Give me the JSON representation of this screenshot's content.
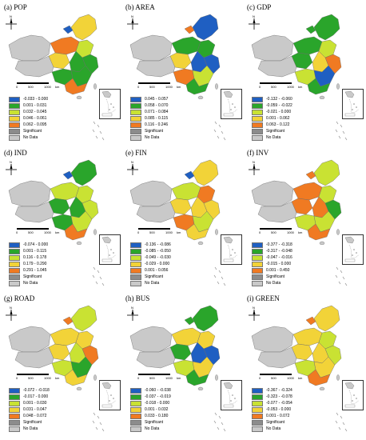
{
  "colors": {
    "blue": "#1f5fc2",
    "green": "#2aa52b",
    "yellowgreen": "#c9e233",
    "yellow": "#f2d338",
    "orange": "#f07a22",
    "gray": "#c9c9c9",
    "significant": "#8c8c8c"
  },
  "panels": [
    {
      "title": "(a) POP",
      "legend": [
        {
          "label": "-0.033 - 0.000",
          "color": "blue"
        },
        {
          "label": "0.001 - 0.031",
          "color": "green"
        },
        {
          "label": "0.032 - 0.045",
          "color": "yellowgreen"
        },
        {
          "label": "0.046 - 0.061",
          "color": "yellow"
        },
        {
          "label": "0.062 - 0.095",
          "color": "orange"
        },
        {
          "label": "Significant",
          "color": "significant"
        },
        {
          "label": "No Data",
          "color": "gray"
        }
      ],
      "regions": [
        "gray",
        "gray",
        "orange",
        "yellow",
        "yellowgreen",
        "yellow",
        "green",
        "green",
        "green",
        "green",
        "orange",
        "blue"
      ]
    },
    {
      "title": "(b) AREA",
      "legend": [
        {
          "label": "0.045 - 0.057",
          "color": "blue"
        },
        {
          "label": "0.058 - 0.070",
          "color": "green"
        },
        {
          "label": "0.071 - 0.084",
          "color": "yellowgreen"
        },
        {
          "label": "0.085 - 0.115",
          "color": "yellow"
        },
        {
          "label": "0.116 - 0.246",
          "color": "orange"
        },
        {
          "label": "Significant",
          "color": "significant"
        },
        {
          "label": "No Data",
          "color": "gray"
        }
      ],
      "regions": [
        "gray",
        "gray",
        "green",
        "blue",
        "green",
        "yellow",
        "blue",
        "blue",
        "orange",
        "yellowgreen",
        "green",
        "orange"
      ]
    },
    {
      "title": "(c) GDP",
      "legend": [
        {
          "label": "-0.132 - -0.060",
          "color": "blue"
        },
        {
          "label": "-0.059 - -0.022",
          "color": "green"
        },
        {
          "label": "-0.021 - 0.000",
          "color": "yellowgreen"
        },
        {
          "label": "0.001 - 0.062",
          "color": "yellow"
        },
        {
          "label": "0.063 - 0.122",
          "color": "orange"
        },
        {
          "label": "Significant",
          "color": "significant"
        },
        {
          "label": "No Data",
          "color": "gray"
        }
      ],
      "regions": [
        "gray",
        "gray",
        "green",
        "green",
        "yellowgreen",
        "green",
        "yellow",
        "orange",
        "yellowgreen",
        "blue",
        "green",
        "green"
      ]
    },
    {
      "title": "(d) IND",
      "legend": [
        {
          "label": "-0.074 - 0.000",
          "color": "blue"
        },
        {
          "label": "0.001 - 0.115",
          "color": "green"
        },
        {
          "label": "0.116 - 0.178",
          "color": "yellowgreen"
        },
        {
          "label": "0.179 - 0.290",
          "color": "yellow"
        },
        {
          "label": "0.291 - 1.045",
          "color": "orange"
        },
        {
          "label": "Significant",
          "color": "significant"
        },
        {
          "label": "No Data",
          "color": "gray"
        }
      ],
      "regions": [
        "gray",
        "gray",
        "yellowgreen",
        "green",
        "yellowgreen",
        "green",
        "green",
        "yellowgreen",
        "green",
        "yellowgreen",
        "orange",
        "blue"
      ]
    },
    {
      "title": "(e) FIN",
      "legend": [
        {
          "label": "-0.136 - -0.086",
          "color": "blue"
        },
        {
          "label": "-0.085 - -0.050",
          "color": "green"
        },
        {
          "label": "-0.049 - -0.030",
          "color": "yellowgreen"
        },
        {
          "label": "-0.029 - 0.000",
          "color": "yellow"
        },
        {
          "label": "0.001 - 0.056",
          "color": "orange"
        },
        {
          "label": "Significant",
          "color": "significant"
        },
        {
          "label": "No Data",
          "color": "gray"
        }
      ],
      "regions": [
        "gray",
        "gray",
        "yellowgreen",
        "yellow",
        "orange",
        "yellow",
        "yellow",
        "yellow",
        "orange",
        "yellowgreen",
        "yellow",
        "blue"
      ]
    },
    {
      "title": "(f) INV",
      "legend": [
        {
          "label": "-0.377 - -0.318",
          "color": "blue"
        },
        {
          "label": "-0.317 - -0.048",
          "color": "green"
        },
        {
          "label": "-0.047 - -0.016",
          "color": "yellowgreen"
        },
        {
          "label": "-0.015 - 0.000",
          "color": "yellow"
        },
        {
          "label": "0.001 - 0.450",
          "color": "orange"
        },
        {
          "label": "Significant",
          "color": "significant"
        },
        {
          "label": "No Data",
          "color": "gray"
        }
      ],
      "regions": [
        "gray",
        "gray",
        "orange",
        "yellowgreen",
        "yellowgreen",
        "orange",
        "orange",
        "green",
        "yellowgreen",
        "yellowgreen",
        "orange",
        "orange"
      ]
    },
    {
      "title": "(g) ROAD",
      "legend": [
        {
          "label": "-0.072 - -0.018",
          "color": "blue"
        },
        {
          "label": "-0.017 - 0.000",
          "color": "green"
        },
        {
          "label": "0.001 - 0.030",
          "color": "yellowgreen"
        },
        {
          "label": "0.031 - 0.047",
          "color": "yellow"
        },
        {
          "label": "0.048 - 0.072",
          "color": "orange"
        },
        {
          "label": "Significant",
          "color": "significant"
        },
        {
          "label": "No Data",
          "color": "gray"
        }
      ],
      "regions": [
        "gray",
        "gray",
        "yellow",
        "yellowgreen",
        "yellow",
        "yellow",
        "yellowgreen",
        "orange",
        "yellowgreen",
        "green",
        "yellow",
        "orange"
      ]
    },
    {
      "title": "(h) BUS",
      "legend": [
        {
          "label": "-0.060 - -0.038",
          "color": "blue"
        },
        {
          "label": "-0.037 - -0.019",
          "color": "green"
        },
        {
          "label": "-0.018 - 0.000",
          "color": "yellowgreen"
        },
        {
          "label": "0.001 - 0.032",
          "color": "yellow"
        },
        {
          "label": "0.033 - 0.180",
          "color": "orange"
        },
        {
          "label": "Significant",
          "color": "significant"
        },
        {
          "label": "No Data",
          "color": "gray"
        }
      ],
      "regions": [
        "gray",
        "gray",
        "yellow",
        "green",
        "yellow",
        "green",
        "blue",
        "blue",
        "yellowgreen",
        "yellow",
        "green",
        "green"
      ]
    },
    {
      "title": "(i) GREEN",
      "legend": [
        {
          "label": "-0.367 - -0.324",
          "color": "blue"
        },
        {
          "label": "-0.323 - -0.078",
          "color": "green"
        },
        {
          "label": "-0.077 - -0.054",
          "color": "yellowgreen"
        },
        {
          "label": "-0.053 - 0.000",
          "color": "yellow"
        },
        {
          "label": "0.001 - 0.072",
          "color": "orange"
        },
        {
          "label": "Significant",
          "color": "significant"
        },
        {
          "label": "No Data",
          "color": "gray"
        }
      ],
      "regions": [
        "gray",
        "gray",
        "yellow",
        "yellow",
        "yellowgreen",
        "yellow",
        "yellow",
        "yellowgreen",
        "yellowgreen",
        "yellow",
        "orange",
        "orange"
      ]
    }
  ],
  "scale": {
    "ticks": [
      "0",
      "500",
      "1000"
    ],
    "unit": "km"
  },
  "compass_label": "N"
}
